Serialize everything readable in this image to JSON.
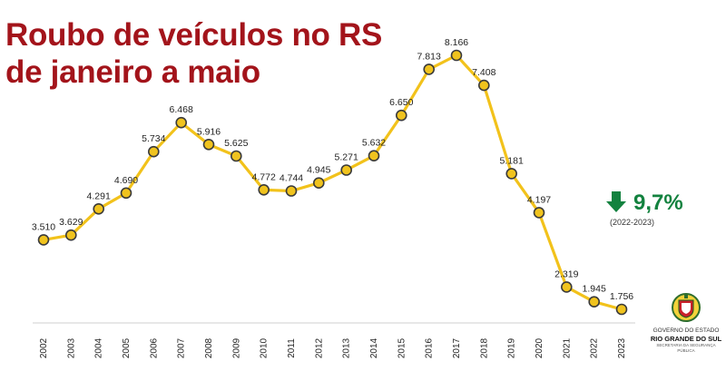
{
  "title_line1": "Roubo de veículos no RS",
  "title_line2": "de janeiro a maio",
  "badge": {
    "icon": "arrow-down-icon",
    "percent": "9,7%",
    "period": "(2022-2023)",
    "color": "#13823f"
  },
  "logo": {
    "icon": "rs-coat-of-arms-icon",
    "line1": "GOVERNO DO ESTADO",
    "line2": "RIO GRANDE DO SUL",
    "line3": "SECRETARIA DA SEGURANÇA PÚBLICA"
  },
  "colors": {
    "title": "#a3141b",
    "line": "#f2c21b",
    "marker_fill": "#f0c31e",
    "marker_stroke": "#3a3a3a",
    "accent": "#13823f"
  },
  "chart_data": {
    "type": "line",
    "title": "Roubo de veículos no RS de janeiro a maio",
    "categories": [
      "2002",
      "2003",
      "2004",
      "2005",
      "2006",
      "2007",
      "2008",
      "2009",
      "2010",
      "2011",
      "2012",
      "2013",
      "2014",
      "2015",
      "2016",
      "2017",
      "2018",
      "2019",
      "2020",
      "2021",
      "2022",
      "2023"
    ],
    "values": [
      3510,
      3629,
      4291,
      4690,
      5734,
      6468,
      5916,
      5625,
      4772,
      4744,
      4945,
      5271,
      5632,
      6650,
      7813,
      8166,
      7408,
      5181,
      4197,
      2319,
      1945,
      1756
    ],
    "labels": [
      "3.510",
      "3.629",
      "4.291",
      "4.690",
      "5.734",
      "6.468",
      "5.916",
      "5.625",
      "4.772",
      "4.744",
      "4.945",
      "5.271",
      "5.632",
      "6.650",
      "7.813",
      "8.166",
      "7.408",
      "5.181",
      "4.197",
      "2.319",
      "1.945",
      "1.756"
    ],
    "xlabel": "",
    "ylabel": "",
    "grid": false,
    "legend": "none"
  }
}
